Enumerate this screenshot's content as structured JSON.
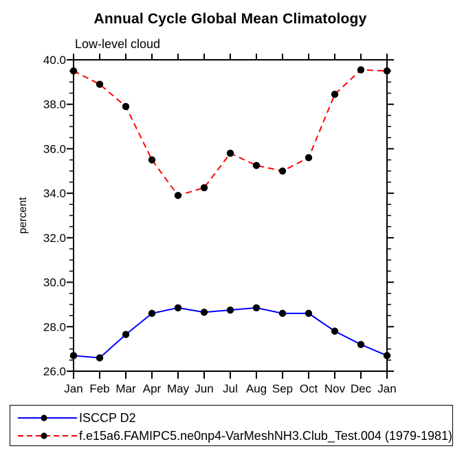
{
  "chart_data": {
    "type": "line",
    "title": "Annual Cycle Global Mean Climatology",
    "subtitle": "Low-level cloud",
    "ylabel": "percent",
    "xlabel": "",
    "categories": [
      "Jan",
      "Feb",
      "Mar",
      "Apr",
      "May",
      "Jun",
      "Jul",
      "Aug",
      "Sep",
      "Oct",
      "Nov",
      "Dec",
      "Jan"
    ],
    "ylim": [
      26.0,
      40.0
    ],
    "ytick_major": 2.0,
    "ytick_minor": 0.5,
    "ytick_labels": [
      "26.0",
      "28.0",
      "30.0",
      "32.0",
      "34.0",
      "36.0",
      "38.0",
      "40.0"
    ],
    "grid": false,
    "legend_position": "bottom",
    "axis_color": "#000000",
    "marker": "filled-circle",
    "series": [
      {
        "name": "ISCCP D2",
        "color": "#0000ff",
        "line_style": "solid",
        "marker_color": "#000000",
        "values": [
          26.7,
          26.6,
          27.65,
          28.6,
          28.85,
          28.65,
          28.75,
          28.85,
          28.6,
          28.6,
          27.8,
          27.2,
          26.7
        ]
      },
      {
        "name": "f.e15a6.FAMIPC5.ne0np4-VarMeshNH3.Club_Test.004 (1979-1981)",
        "color": "#ff0000",
        "line_style": "dashed",
        "marker_color": "#000000",
        "values": [
          39.5,
          38.9,
          37.9,
          35.5,
          33.9,
          34.25,
          35.8,
          35.25,
          35.0,
          35.6,
          38.45,
          39.55,
          39.5
        ]
      }
    ]
  }
}
